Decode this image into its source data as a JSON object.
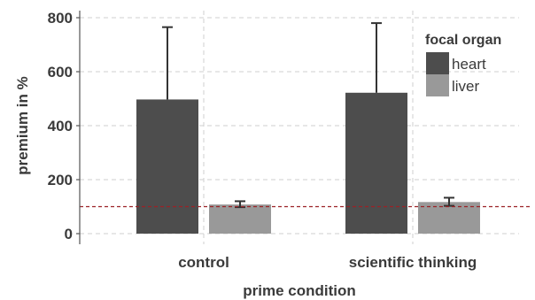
{
  "chart_data": {
    "type": "bar",
    "xlabel": "prime condition",
    "ylabel": "premium in %",
    "ylim": [
      0,
      800
    ],
    "yticks": [
      0,
      200,
      400,
      600,
      800
    ],
    "categories": [
      "control",
      "scientific thinking"
    ],
    "series": [
      {
        "name": "heart",
        "color": "#4d4d4d",
        "values": [
          497,
          522
        ],
        "error_upper": [
          765,
          780
        ],
        "error_lower": [
          497,
          522
        ]
      },
      {
        "name": "liver",
        "color": "#999999",
        "values": [
          108,
          117
        ],
        "error_upper": [
          120,
          133
        ],
        "error_lower": [
          98,
          103
        ]
      }
    ],
    "reference_line": {
      "value": 100,
      "color": "#9b2226",
      "style": "dashed"
    },
    "grid": true,
    "legend": {
      "title": "focal organ",
      "position": "top-right"
    }
  }
}
